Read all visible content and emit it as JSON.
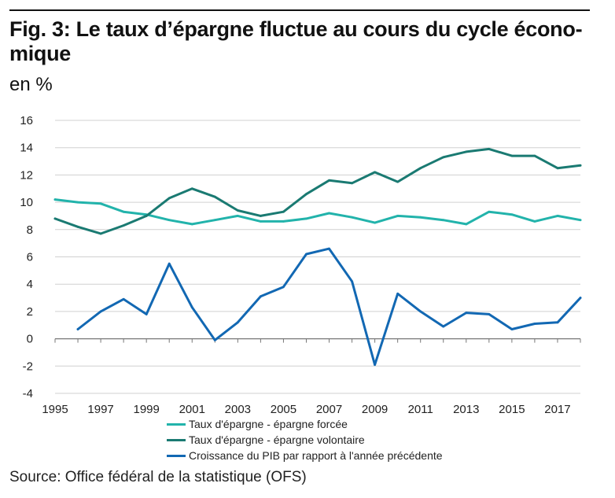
{
  "header": {
    "title": "Fig. 3: Le taux d’épargne fluctue au cours du cycle écono­mique",
    "subtitle": "en %"
  },
  "source": "Source: Office fédéral de la statistique (OFS)",
  "colors": {
    "forced": "#22b3ab",
    "voluntary": "#1a7a72",
    "gdp": "#1268b3",
    "grid": "#d0d0d0",
    "axis": "#777777"
  },
  "chart_data": {
    "type": "line",
    "title": "Fig. 3: Le taux d’épargne fluctue au cours du cycle écono­mique",
    "ylabel": "en %",
    "xlabel": "",
    "ylim": [
      -4,
      16
    ],
    "xlim": [
      1995,
      2018
    ],
    "yticks": [
      -4,
      -2,
      0,
      2,
      4,
      6,
      8,
      10,
      12,
      14,
      16
    ],
    "xticks": [
      1995,
      1997,
      1999,
      2001,
      2003,
      2005,
      2007,
      2009,
      2011,
      2013,
      2015,
      2017
    ],
    "grid": true,
    "legend_position": "bottom",
    "series": [
      {
        "name": "Taux d'épargne - épargne forcée",
        "color": "#22b3ab",
        "x": [
          1995,
          1996,
          1997,
          1998,
          1999,
          2000,
          2001,
          2002,
          2003,
          2004,
          2005,
          2006,
          2007,
          2008,
          2009,
          2010,
          2011,
          2012,
          2013,
          2014,
          2015,
          2016,
          2017,
          2018
        ],
        "values": [
          10.2,
          10.0,
          9.9,
          9.3,
          9.1,
          8.7,
          8.4,
          8.7,
          9.0,
          8.6,
          8.6,
          8.8,
          9.2,
          8.9,
          8.5,
          9.0,
          8.9,
          8.7,
          8.4,
          9.3,
          9.1,
          8.6,
          9.0,
          8.7
        ]
      },
      {
        "name": "Taux d'épargne - épargne volontaire",
        "color": "#1a7a72",
        "x": [
          1995,
          1996,
          1997,
          1998,
          1999,
          2000,
          2001,
          2002,
          2003,
          2004,
          2005,
          2006,
          2007,
          2008,
          2009,
          2010,
          2011,
          2012,
          2013,
          2014,
          2015,
          2016,
          2017,
          2018
        ],
        "values": [
          8.8,
          8.2,
          7.7,
          8.3,
          9.0,
          10.3,
          11.0,
          10.4,
          9.4,
          9.0,
          9.3,
          10.6,
          11.6,
          11.4,
          12.2,
          11.5,
          12.5,
          13.3,
          13.7,
          13.9,
          13.4,
          13.4,
          12.5,
          12.7
        ]
      },
      {
        "name": "Croissance du PIB par rapport à l'année précédente",
        "color": "#1268b3",
        "x": [
          1996,
          1997,
          1998,
          1999,
          2000,
          2001,
          2002,
          2003,
          2004,
          2005,
          2006,
          2007,
          2008,
          2009,
          2010,
          2011,
          2012,
          2013,
          2014,
          2015,
          2016,
          2017,
          2018
        ],
        "values": [
          0.7,
          2.0,
          2.9,
          1.8,
          5.5,
          2.3,
          -0.1,
          1.2,
          3.1,
          3.8,
          6.2,
          6.6,
          4.2,
          -1.9,
          3.3,
          2.0,
          0.9,
          1.9,
          1.8,
          0.7,
          1.1,
          1.2,
          3.0
        ]
      }
    ]
  }
}
